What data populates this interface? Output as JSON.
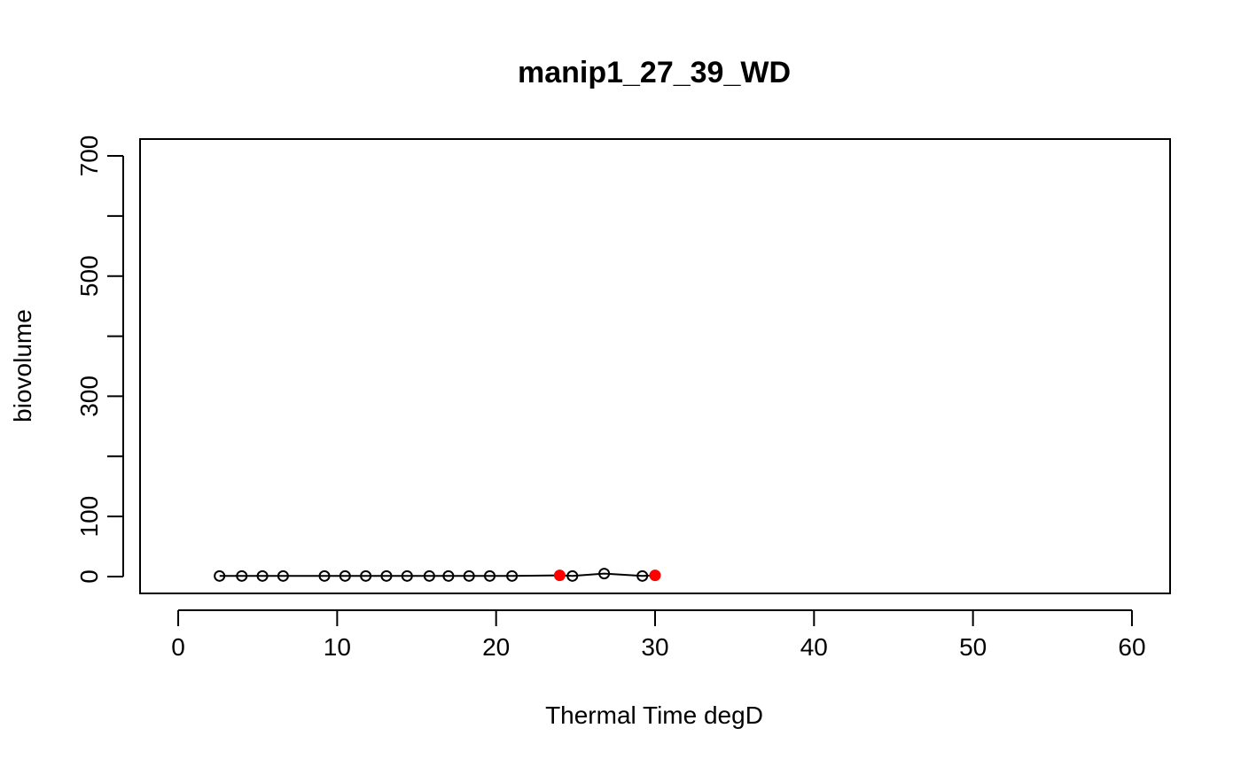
{
  "chart_data": {
    "type": "scatter",
    "title": "manip1_27_39_WD",
    "xlabel": "Thermal Time degD",
    "ylabel": "biovolume",
    "xlim": [
      -2.4,
      62.4
    ],
    "ylim": [
      -28,
      728
    ],
    "x_ticks": [
      0,
      10,
      20,
      30,
      40,
      50,
      60
    ],
    "y_ticks": [
      0,
      100,
      200,
      300,
      400,
      500,
      600,
      700
    ],
    "y_tick_labels": [
      "0",
      "100",
      "",
      "300",
      "",
      "500",
      "",
      "700"
    ],
    "grid": false,
    "colors": {
      "points": "#000000",
      "highlight": "#ff0000",
      "line": "#000000"
    },
    "series": [
      {
        "line": true,
        "points": [
          {
            "x": 2.6,
            "y": 1
          },
          {
            "x": 4.0,
            "y": 1
          },
          {
            "x": 5.3,
            "y": 1
          },
          {
            "x": 6.6,
            "y": 1
          },
          {
            "x": 9.2,
            "y": 1
          },
          {
            "x": 10.5,
            "y": 1
          },
          {
            "x": 11.8,
            "y": 1
          },
          {
            "x": 13.1,
            "y": 1
          },
          {
            "x": 14.4,
            "y": 1
          },
          {
            "x": 15.8,
            "y": 1
          },
          {
            "x": 17.0,
            "y": 1
          },
          {
            "x": 18.3,
            "y": 1
          },
          {
            "x": 19.6,
            "y": 1
          },
          {
            "x": 21.0,
            "y": 1
          },
          {
            "x": 24.0,
            "y": 2,
            "highlight": true
          },
          {
            "x": 24.8,
            "y": 1
          },
          {
            "x": 26.8,
            "y": 5
          },
          {
            "x": 29.2,
            "y": 1
          },
          {
            "x": 30.0,
            "y": 2,
            "highlight": true
          }
        ]
      }
    ]
  }
}
